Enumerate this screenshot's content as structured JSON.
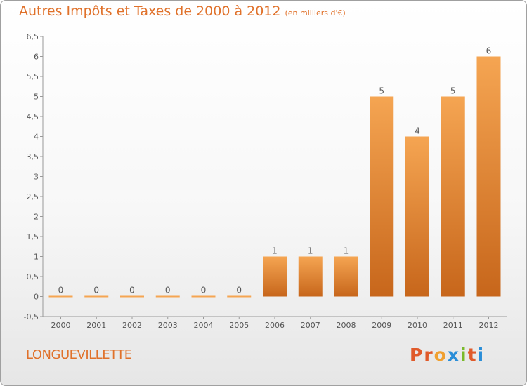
{
  "header": {
    "title": "Autres Impôts et Taxes de 2000 à 2012",
    "unit": "(en milliers d'€)"
  },
  "footer": {
    "place": "LONGUEVILLETTE",
    "brand_letters": [
      "P",
      "r",
      "o",
      "x",
      "i",
      "t",
      "i"
    ]
  },
  "colors": {
    "accent": "#e0712a",
    "bar_top": "#f5a552",
    "bar_bottom": "#c7661b",
    "brand": [
      "#e05a2a",
      "#e05a2a",
      "#f0a030",
      "#2a8ed8",
      "#7aba2a",
      "#e05a2a",
      "#2a8ed8"
    ]
  },
  "chart_data": {
    "type": "bar",
    "categories": [
      "2000",
      "2001",
      "2002",
      "2003",
      "2004",
      "2005",
      "2006",
      "2007",
      "2008",
      "2009",
      "2010",
      "2011",
      "2012"
    ],
    "values": [
      0,
      0,
      0,
      0,
      0,
      0,
      1,
      1,
      1,
      5,
      4,
      5,
      6
    ],
    "value_labels": [
      "0",
      "0",
      "0",
      "0",
      "0",
      "0",
      "1",
      "1",
      "1",
      "5",
      "4",
      "5",
      "6"
    ],
    "ylim": [
      -0.5,
      6.5
    ],
    "yticks": [
      -0.5,
      0,
      0.5,
      1,
      1.5,
      2,
      2.5,
      3,
      3.5,
      4,
      4.5,
      5,
      5.5,
      6,
      6.5
    ],
    "ytick_labels": [
      "-0,5",
      "0",
      "0,5",
      "1",
      "1,5",
      "2",
      "2,5",
      "3",
      "3,5",
      "4",
      "4,5",
      "5",
      "5,5",
      "6",
      "6,5"
    ],
    "grid": false
  }
}
